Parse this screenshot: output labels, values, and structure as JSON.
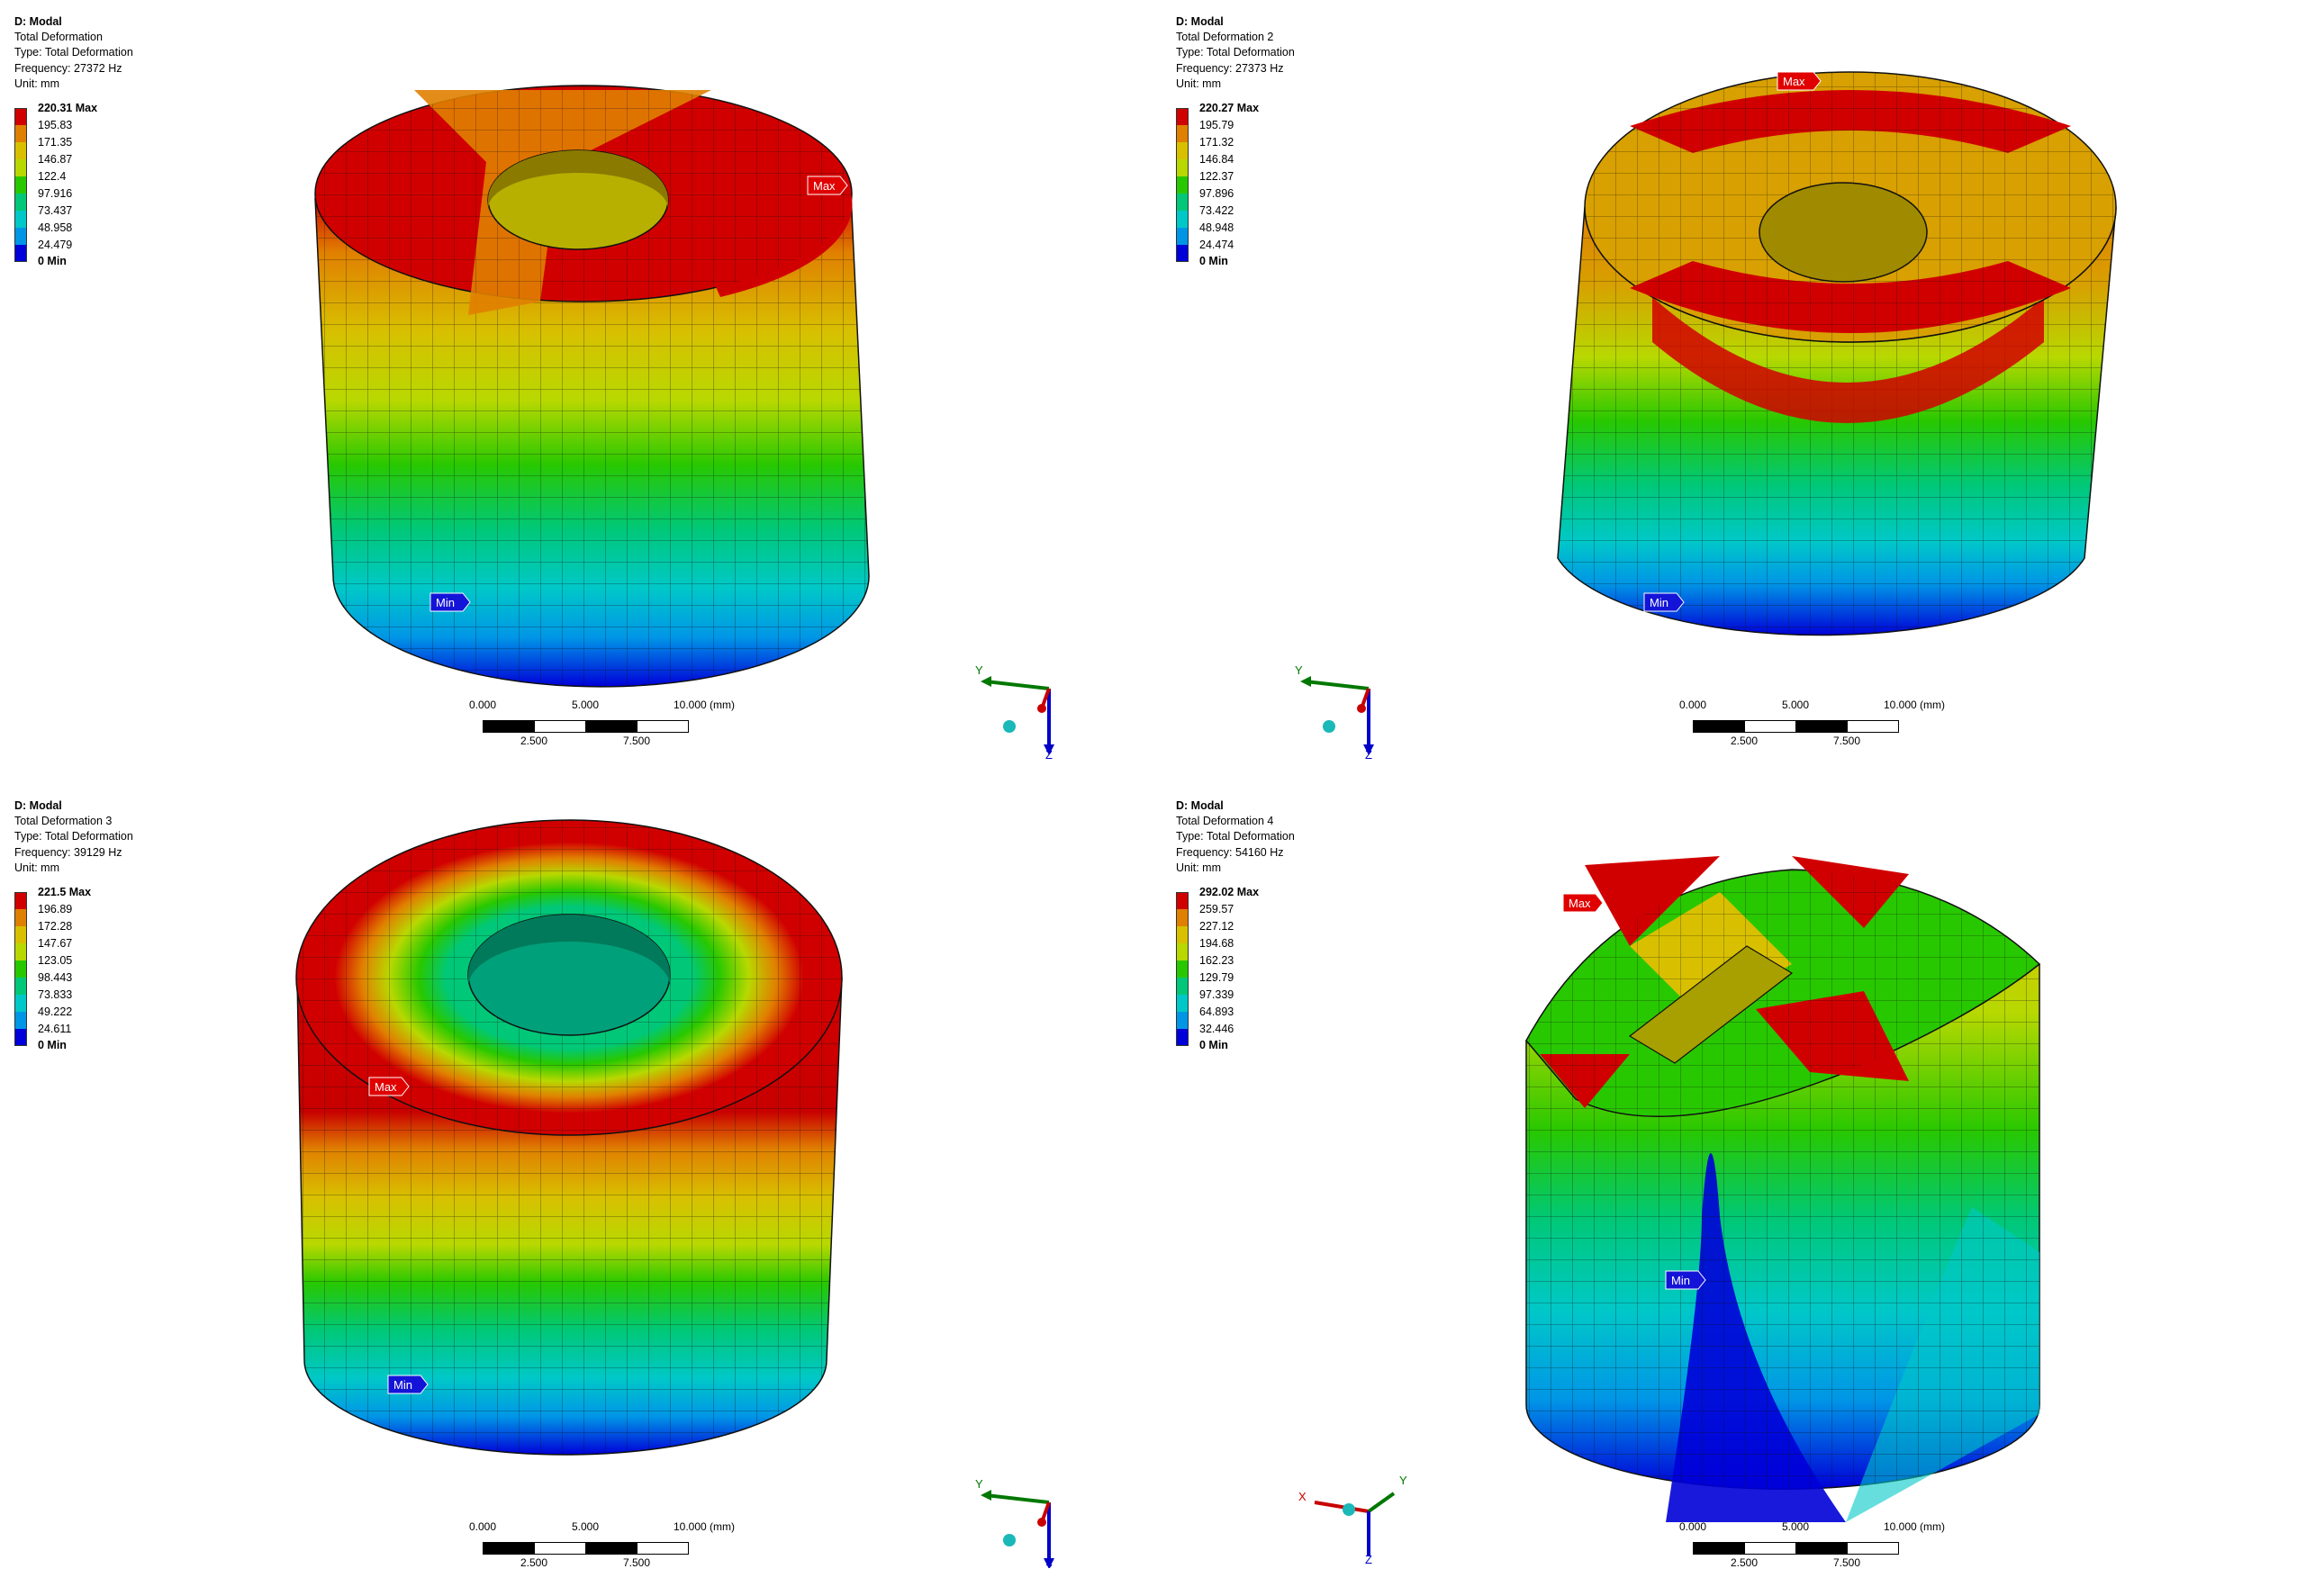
{
  "panels": [
    {
      "title": "D: Modal",
      "result": "Total Deformation",
      "type": "Type: Total Deformation",
      "frequency": "Frequency: 27372 Hz",
      "unit": "Unit: mm",
      "legend": [
        "220.31 Max",
        "195.83",
        "171.35",
        "146.87",
        "122.4",
        "97.916",
        "73.437",
        "48.958",
        "24.479",
        "0 Min"
      ],
      "max_tag": "Max",
      "min_tag": "Min",
      "triad": [
        "Y",
        "Z"
      ]
    },
    {
      "title": "D: Modal",
      "result": "Total Deformation 2",
      "type": "Type: Total Deformation",
      "frequency": "Frequency: 27373 Hz",
      "unit": "Unit: mm",
      "legend": [
        "220.27 Max",
        "195.79",
        "171.32",
        "146.84",
        "122.37",
        "97.896",
        "73.422",
        "48.948",
        "24.474",
        "0 Min"
      ],
      "max_tag": "Max",
      "min_tag": "Min",
      "triad": [
        "Y",
        "Z"
      ]
    },
    {
      "title": "D: Modal",
      "result": "Total Deformation 3",
      "type": "Type: Total Deformation",
      "frequency": "Frequency: 39129 Hz",
      "unit": "Unit: mm",
      "legend": [
        "221.5 Max",
        "196.89",
        "172.28",
        "147.67",
        "123.05",
        "98.443",
        "73.833",
        "49.222",
        "24.611",
        "0 Min"
      ],
      "max_tag": "Max",
      "min_tag": "Min",
      "triad": [
        "Y",
        "Z"
      ]
    },
    {
      "title": "D: Modal",
      "result": "Total Deformation 4",
      "type": "Type: Total Deformation",
      "frequency": "Frequency: 54160 Hz",
      "unit": "Unit: mm",
      "legend": [
        "292.02 Max",
        "259.57",
        "227.12",
        "194.68",
        "162.23",
        "129.79",
        "97.339",
        "64.893",
        "32.446",
        "0 Min"
      ],
      "max_tag": "Max",
      "min_tag": "Min",
      "triad": [
        "X",
        "Y",
        "Z"
      ]
    }
  ],
  "scale_bar": {
    "top": [
      "0.000",
      "5.000",
      "10.000 (mm)"
    ],
    "bottom": [
      "2.500",
      "7.500"
    ]
  },
  "colors": {
    "contour": [
      "#d10000",
      "#e08000",
      "#d8c000",
      "#b8d800",
      "#28c800",
      "#00c878",
      "#00c8c8",
      "#0096e6",
      "#0000d8"
    ],
    "tag_max": "#e00000",
    "tag_min": "#1414d8",
    "axis_x": "#c80000",
    "axis_y": "#007800",
    "axis_z": "#0000c8"
  }
}
